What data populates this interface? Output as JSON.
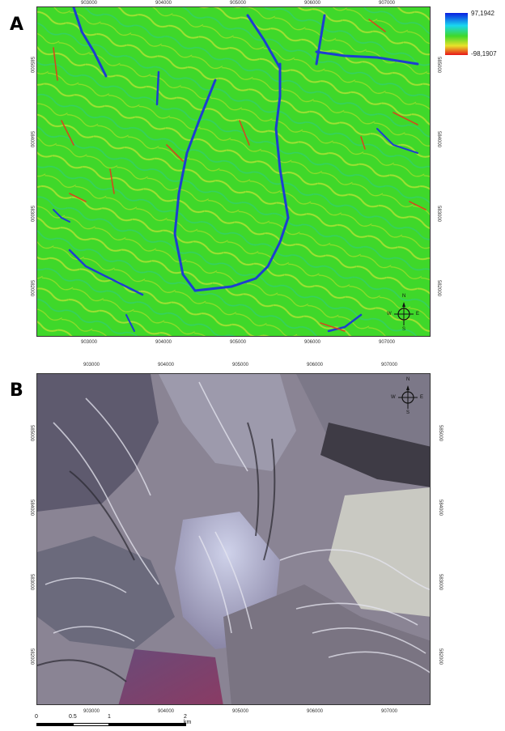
{
  "panels": [
    {
      "letter": "A",
      "top_labels": [
        "903000",
        "904000",
        "905000",
        "906000",
        "907000"
      ],
      "right_labels": [
        "585000",
        "584000",
        "583000",
        "582000"
      ],
      "left_labels": [
        "585000",
        "584000",
        "583000",
        "582000"
      ],
      "bottom_labels": [
        "903000",
        "904000",
        "905000",
        "906000",
        "907000"
      ],
      "legend": {
        "max": "97,1942",
        "min": "-98,1907"
      },
      "north": {
        "n": "N",
        "s": "S",
        "e": "E",
        "w": "W"
      }
    },
    {
      "letter": "B",
      "top_labels": [
        "903000",
        "904000",
        "905000",
        "906000",
        "907000"
      ],
      "right_labels": [
        "585000",
        "584000",
        "583000",
        "582000"
      ],
      "left_labels": [
        "585000",
        "584000",
        "583000",
        "582000"
      ],
      "bottom_labels": [
        "903000",
        "904000",
        "905000",
        "906000",
        "907000"
      ],
      "north": {
        "n": "N",
        "s": "S",
        "e": "E",
        "w": "W"
      }
    }
  ],
  "scalebar": {
    "labels": [
      "0",
      "0.5",
      "1",
      "2 km"
    ]
  },
  "colors": {
    "map_a_base": "#3fd82a",
    "map_b_base": "#8a8494",
    "legend_high": "#0a1ee0",
    "legend_low": "#e8141a"
  }
}
